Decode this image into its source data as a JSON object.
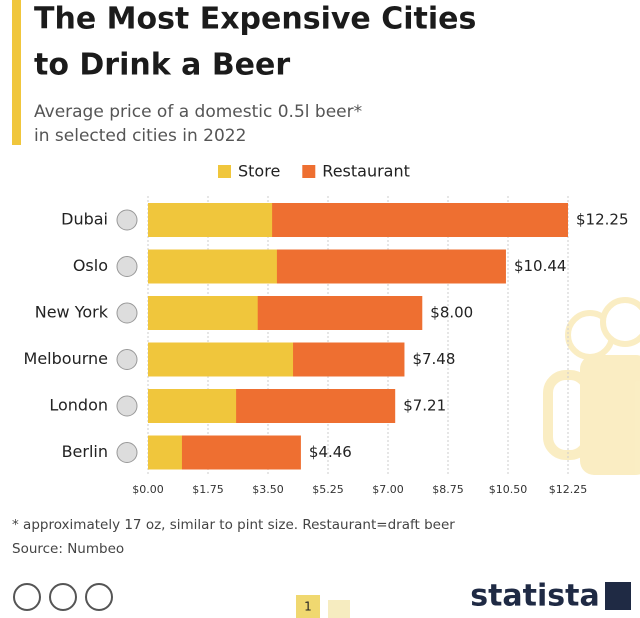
{
  "chart_data": {
    "type": "bar",
    "title": [
      "The Most Expensive Cities",
      "to Drink a Beer"
    ],
    "subtitle": [
      "Average price of a domestic 0.5l beer*",
      "in selected cities in 2022"
    ],
    "categories": [
      "Dubai",
      "Oslo",
      "New York",
      "Melbourne",
      "London",
      "Berlin"
    ],
    "series": [
      {
        "name": "Store",
        "color": "#f0c63c",
        "values": [
          3.62,
          3.76,
          3.2,
          4.23,
          2.57,
          0.99
        ]
      },
      {
        "name": "Restaurant",
        "color": "#ee6f31",
        "values": [
          12.25,
          10.44,
          8.0,
          7.48,
          7.21,
          4.46
        ],
        "value_labels": [
          "$12.25",
          "$10.44",
          "$8.00",
          "$7.48",
          "$7.21",
          "$4.46"
        ]
      }
    ],
    "xlim": [
      0,
      12.25
    ],
    "xticks": [
      {
        "value": 0,
        "label": "$0.00"
      },
      {
        "value": 1.75,
        "label": "$1.75"
      },
      {
        "value": 3.5,
        "label": "$3.50"
      },
      {
        "value": 5.25,
        "label": "$5.25"
      },
      {
        "value": 7,
        "label": "$7.00"
      },
      {
        "value": 8.75,
        "label": "$8.75"
      },
      {
        "value": 10.5,
        "label": "$10.50"
      },
      {
        "value": 12.25,
        "label": "$12.25"
      }
    ],
    "grid": true,
    "legend": "top",
    "footnote": "* approximately 17 oz, similar to pint size. Restaurant=draft beer",
    "source": "Source: Numbeo",
    "brand": "statista",
    "page": "1"
  }
}
